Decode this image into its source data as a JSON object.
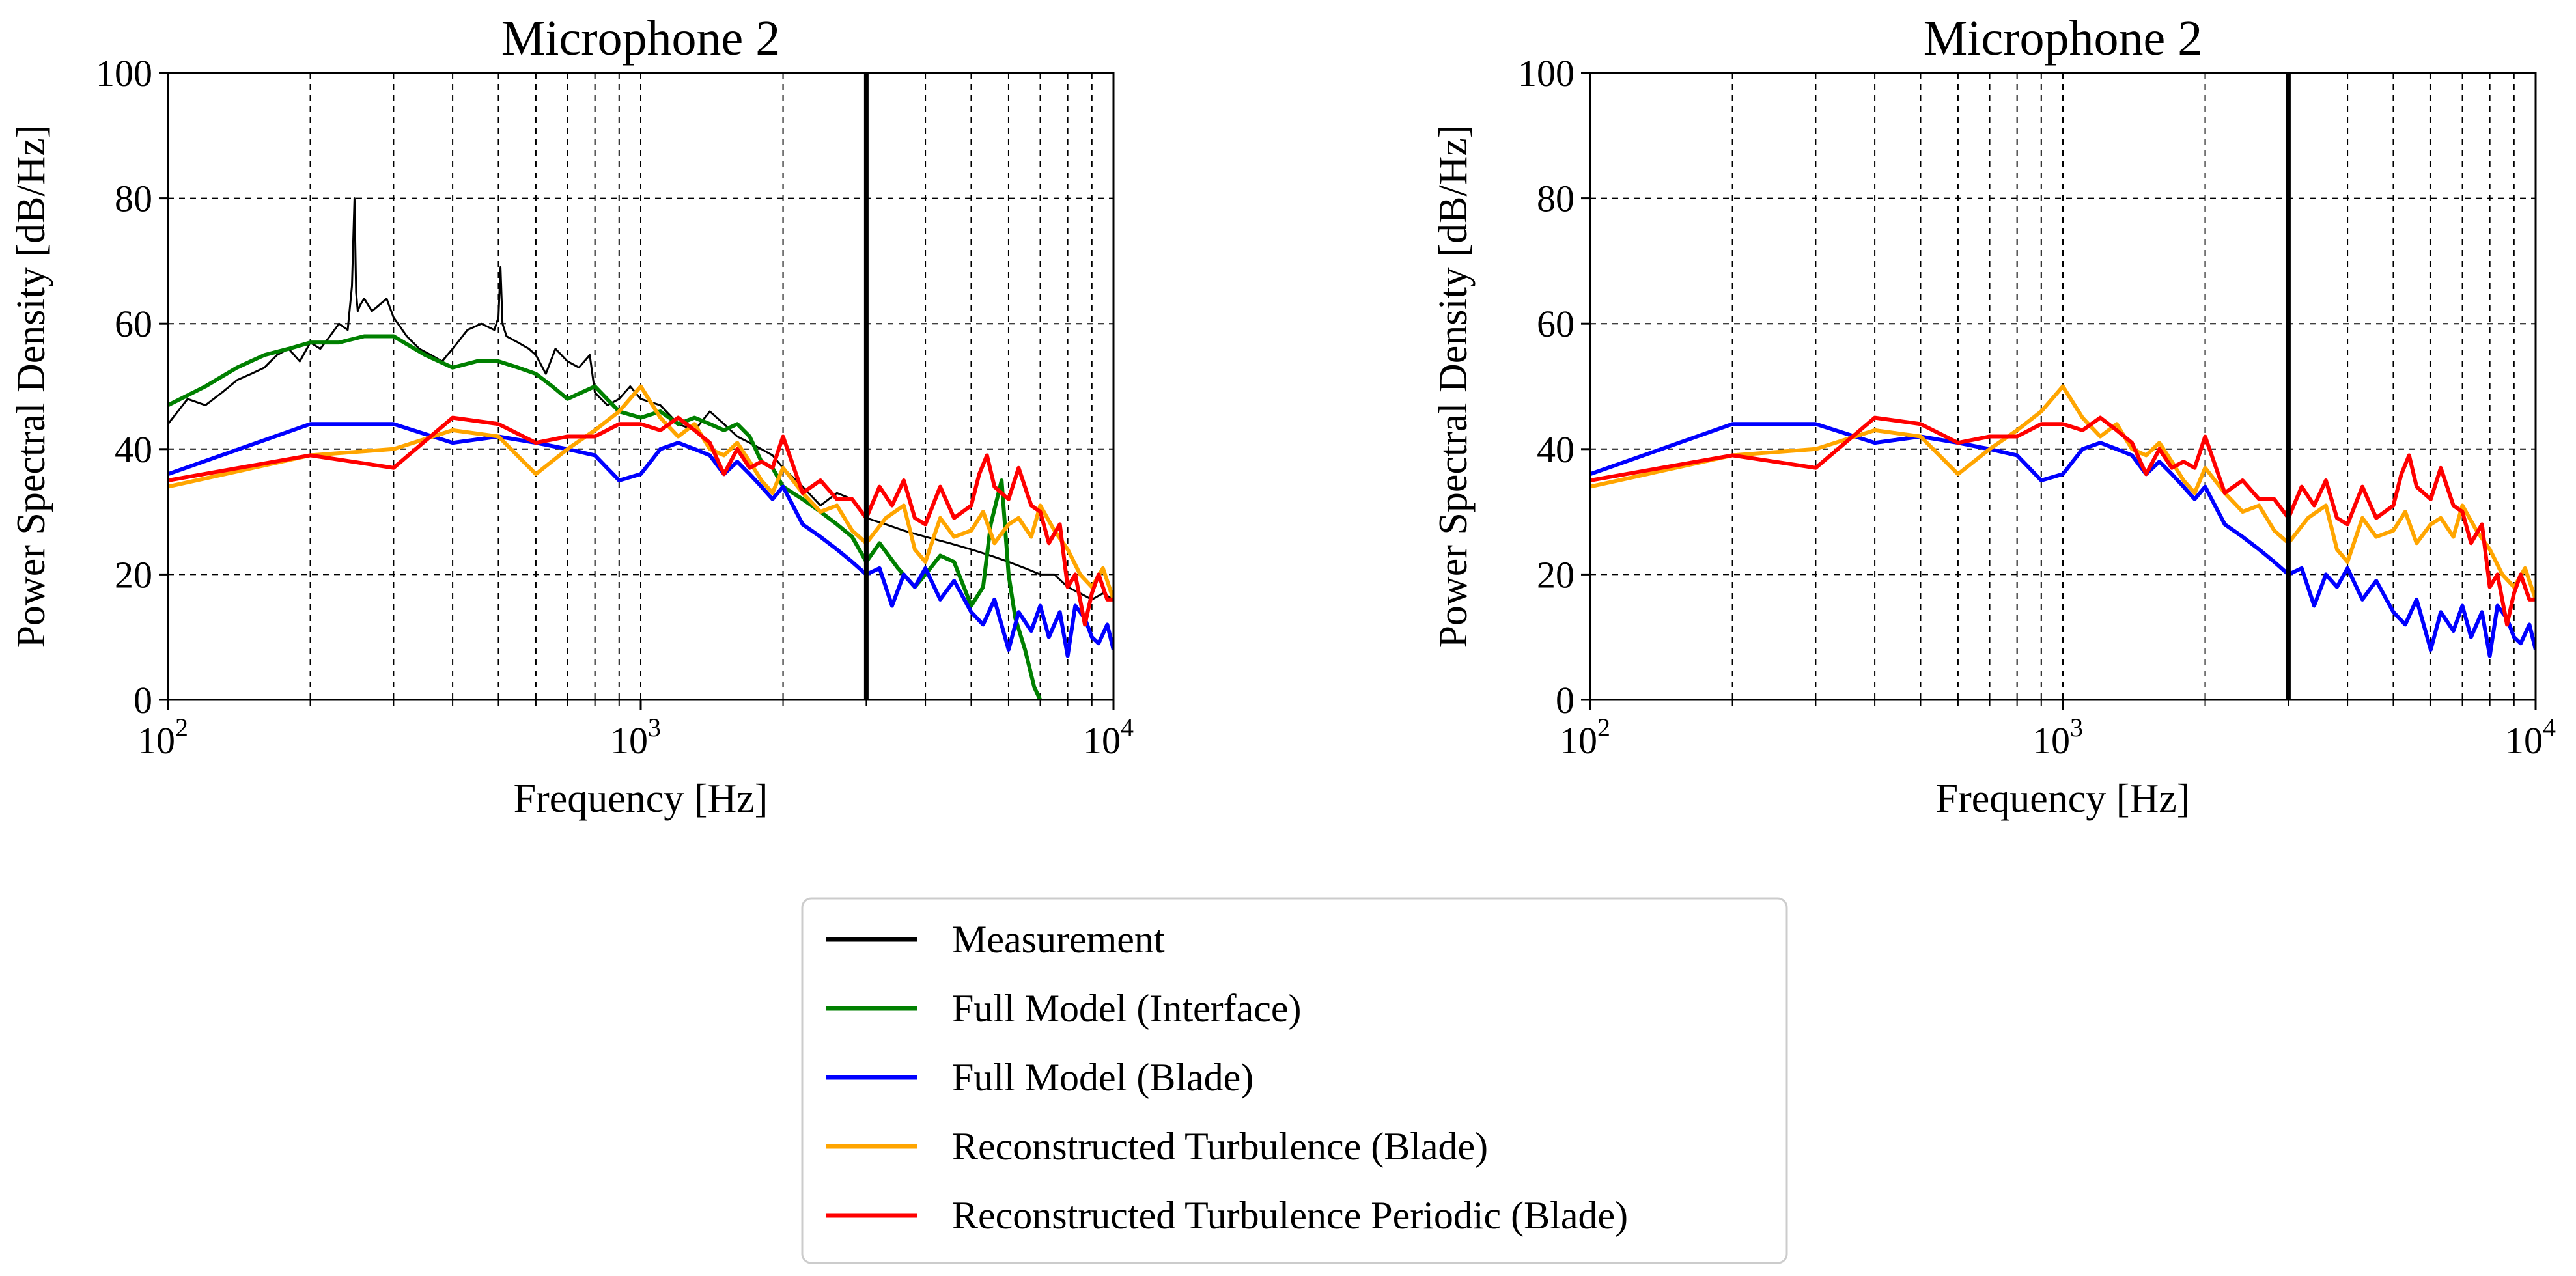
{
  "colors": {
    "Measurement": "#000000",
    "Full Model (Interface)": "#008000",
    "Full Model (Blade)": "#0000ff",
    "Reconstructed Turbulence (Blade)": "#ffa500",
    "Reconstructed Turbulence Periodic (Blade)": "#ff0000"
  },
  "legend": {
    "entries": [
      "Measurement",
      "Full Model (Interface)",
      "Full Model (Blade)",
      "Reconstructed Turbulence (Blade)",
      "Reconstructed Turbulence Periodic (Blade)"
    ]
  },
  "chart_data": [
    {
      "type": "line",
      "title": "Microphone 2",
      "xlabel": "Frequency [Hz]",
      "ylabel": "Power Spectral Density [dB/Hz]",
      "xscale": "log",
      "xlim": [
        100,
        10000
      ],
      "ylim": [
        0,
        100
      ],
      "yticks": [
        0,
        20,
        40,
        60,
        80,
        100
      ],
      "xticks": [
        {
          "base": "10",
          "exp": "2",
          "value": 100
        },
        {
          "base": "10",
          "exp": "3",
          "value": 1000
        },
        {
          "base": "10",
          "exp": "4",
          "value": 10000
        }
      ],
      "grid": true,
      "vertical_line_x": 3000,
      "series": [
        {
          "name": "Measurement",
          "x": [
            100,
            110,
            120,
            130,
            140,
            150,
            160,
            170,
            180,
            190,
            200,
            210,
            220,
            230,
            240,
            245,
            248,
            250,
            252,
            255,
            260,
            270,
            280,
            290,
            300,
            320,
            340,
            360,
            380,
            400,
            430,
            460,
            490,
            500,
            505,
            510,
            520,
            550,
            580,
            600,
            630,
            660,
            700,
            740,
            780,
            800,
            850,
            900,
            950,
            1000,
            1100,
            1200,
            1300,
            1400,
            1500,
            1600,
            1700,
            1800,
            1900,
            2000,
            2200,
            2400,
            2600,
            2800,
            3000,
            3300,
            3600,
            4000,
            4500,
            5000,
            5500,
            6000,
            6500,
            7000,
            7500,
            8000,
            8500,
            9000,
            9500,
            10000
          ],
          "y": [
            44,
            48,
            47,
            49,
            51,
            52,
            53,
            55,
            56,
            54,
            57,
            56,
            58,
            60,
            59,
            66,
            80,
            65,
            62,
            63,
            64,
            62,
            63,
            64,
            61,
            58,
            56,
            55,
            54,
            56,
            59,
            60,
            59,
            61,
            69,
            60,
            58,
            57,
            56,
            55,
            52,
            56,
            54,
            53,
            55,
            49,
            47,
            48,
            50,
            48,
            47,
            44,
            43,
            46,
            44,
            42,
            41,
            40,
            39,
            37,
            34,
            31,
            33,
            32,
            29,
            28,
            27,
            26,
            25,
            24,
            23,
            22,
            21,
            20,
            20,
            18,
            17,
            16,
            17,
            16
          ]
        },
        {
          "name": "Full Model (Interface)",
          "x": [
            100,
            120,
            140,
            160,
            180,
            200,
            230,
            260,
            300,
            350,
            400,
            450,
            500,
            550,
            600,
            650,
            700,
            800,
            900,
            1000,
            1100,
            1200,
            1300,
            1400,
            1500,
            1600,
            1700,
            1800,
            1900,
            2000,
            2200,
            2400,
            2600,
            2800,
            3000,
            3200,
            3500,
            3800,
            4000,
            4300,
            4600,
            5000,
            5300,
            5500,
            5800,
            6000,
            6200,
            6500,
            6800,
            7000
          ],
          "y": [
            47,
            50,
            53,
            55,
            56,
            57,
            57,
            58,
            58,
            55,
            53,
            54,
            54,
            53,
            52,
            50,
            48,
            50,
            46,
            45,
            46,
            44,
            45,
            44,
            43,
            44,
            42,
            38,
            37,
            34,
            32,
            30,
            28,
            26,
            22,
            25,
            21,
            18,
            20,
            23,
            22,
            15,
            18,
            28,
            35,
            20,
            13,
            8,
            2,
            0
          ]
        },
        {
          "name": "Full Model (Blade)",
          "x": [
            100,
            200,
            300,
            400,
            500,
            600,
            700,
            800,
            900,
            1000,
            1100,
            1200,
            1300,
            1400,
            1500,
            1600,
            1700,
            1800,
            1900,
            2000,
            2200,
            2400,
            2600,
            2800,
            3000,
            3200,
            3400,
            3600,
            3800,
            4000,
            4300,
            4600,
            5000,
            5300,
            5600,
            6000,
            6300,
            6700,
            7000,
            7300,
            7700,
            8000,
            8300,
            8700,
            9000,
            9300,
            9700,
            10000
          ],
          "y": [
            36,
            44,
            44,
            41,
            42,
            41,
            40,
            39,
            35,
            36,
            40,
            41,
            40,
            39,
            36,
            38,
            36,
            34,
            32,
            34,
            28,
            26,
            24,
            22,
            20,
            21,
            15,
            20,
            18,
            21,
            16,
            19,
            14,
            12,
            16,
            8,
            14,
            11,
            15,
            10,
            14,
            7,
            15,
            13,
            10,
            9,
            12,
            8
          ]
        },
        {
          "name": "Reconstructed Turbulence (Blade)",
          "x": [
            100,
            200,
            300,
            400,
            500,
            600,
            700,
            800,
            900,
            1000,
            1100,
            1200,
            1300,
            1400,
            1500,
            1600,
            1700,
            1800,
            1900,
            2000,
            2200,
            2400,
            2600,
            2800,
            3000,
            3300,
            3600,
            3800,
            4000,
            4300,
            4600,
            5000,
            5300,
            5600,
            6000,
            6300,
            6700,
            7000,
            7500,
            8000,
            8500,
            9000,
            9500,
            10000
          ],
          "y": [
            34,
            39,
            40,
            43,
            42,
            36,
            40,
            43,
            46,
            50,
            45,
            42,
            44,
            40,
            39,
            41,
            38,
            35,
            33,
            37,
            33,
            30,
            31,
            27,
            25,
            29,
            31,
            24,
            22,
            29,
            26,
            27,
            30,
            25,
            28,
            29,
            26,
            31,
            27,
            24,
            20,
            18,
            21,
            16
          ]
        },
        {
          "name": "Reconstructed Turbulence Periodic (Blade)",
          "x": [
            100,
            200,
            300,
            400,
            500,
            600,
            700,
            800,
            900,
            1000,
            1100,
            1200,
            1300,
            1400,
            1500,
            1600,
            1700,
            1800,
            1900,
            2000,
            2200,
            2400,
            2600,
            2800,
            3000,
            3200,
            3400,
            3600,
            3800,
            4000,
            4300,
            4600,
            5000,
            5200,
            5400,
            5600,
            6000,
            6300,
            6700,
            7000,
            7300,
            7700,
            8000,
            8300,
            8700,
            9000,
            9300,
            9700,
            10000
          ],
          "y": [
            35,
            39,
            37,
            45,
            44,
            41,
            42,
            42,
            44,
            44,
            43,
            45,
            43,
            41,
            36,
            40,
            37,
            38,
            37,
            42,
            33,
            35,
            32,
            32,
            29,
            34,
            31,
            35,
            29,
            28,
            34,
            29,
            31,
            36,
            39,
            34,
            32,
            37,
            31,
            30,
            25,
            28,
            18,
            20,
            12,
            17,
            20,
            16,
            16
          ]
        }
      ]
    },
    {
      "type": "line",
      "title": "Microphone 2",
      "xlabel": "Frequency [Hz]",
      "ylabel": "Power Spectral Density [dB/Hz]",
      "xscale": "log",
      "xlim": [
        100,
        10000
      ],
      "ylim": [
        0,
        100
      ],
      "yticks": [
        0,
        20,
        40,
        60,
        80,
        100
      ],
      "xticks": [
        {
          "base": "10",
          "exp": "2",
          "value": 100
        },
        {
          "base": "10",
          "exp": "3",
          "value": 1000
        },
        {
          "base": "10",
          "exp": "4",
          "value": 10000
        }
      ],
      "grid": true,
      "vertical_line_x": 3000,
      "series": [
        {
          "name": "Full Model (Blade)",
          "x": [
            100,
            200,
            300,
            400,
            500,
            600,
            700,
            800,
            900,
            1000,
            1100,
            1200,
            1300,
            1400,
            1500,
            1600,
            1700,
            1800,
            1900,
            2000,
            2200,
            2400,
            2600,
            2800,
            3000,
            3200,
            3400,
            3600,
            3800,
            4000,
            4300,
            4600,
            5000,
            5300,
            5600,
            6000,
            6300,
            6700,
            7000,
            7300,
            7700,
            8000,
            8300,
            8700,
            9000,
            9300,
            9700,
            10000
          ],
          "y": [
            36,
            44,
            44,
            41,
            42,
            41,
            40,
            39,
            35,
            36,
            40,
            41,
            40,
            39,
            36,
            38,
            36,
            34,
            32,
            34,
            28,
            26,
            24,
            22,
            20,
            21,
            15,
            20,
            18,
            21,
            16,
            19,
            14,
            12,
            16,
            8,
            14,
            11,
            15,
            10,
            14,
            7,
            15,
            13,
            10,
            9,
            12,
            8
          ]
        },
        {
          "name": "Reconstructed Turbulence (Blade)",
          "x": [
            100,
            200,
            300,
            400,
            500,
            600,
            700,
            800,
            900,
            1000,
            1100,
            1200,
            1300,
            1400,
            1500,
            1600,
            1700,
            1800,
            1900,
            2000,
            2200,
            2400,
            2600,
            2800,
            3000,
            3300,
            3600,
            3800,
            4000,
            4300,
            4600,
            5000,
            5300,
            5600,
            6000,
            6300,
            6700,
            7000,
            7500,
            8000,
            8500,
            9000,
            9500,
            10000
          ],
          "y": [
            34,
            39,
            40,
            43,
            42,
            36,
            40,
            43,
            46,
            50,
            45,
            42,
            44,
            40,
            39,
            41,
            38,
            35,
            33,
            37,
            33,
            30,
            31,
            27,
            25,
            29,
            31,
            24,
            22,
            29,
            26,
            27,
            30,
            25,
            28,
            29,
            26,
            31,
            27,
            24,
            20,
            18,
            21,
            16
          ]
        },
        {
          "name": "Reconstructed Turbulence Periodic (Blade)",
          "x": [
            100,
            200,
            300,
            400,
            500,
            600,
            700,
            800,
            900,
            1000,
            1100,
            1200,
            1300,
            1400,
            1500,
            1600,
            1700,
            1800,
            1900,
            2000,
            2200,
            2400,
            2600,
            2800,
            3000,
            3200,
            3400,
            3600,
            3800,
            4000,
            4300,
            4600,
            5000,
            5200,
            5400,
            5600,
            6000,
            6300,
            6700,
            7000,
            7300,
            7700,
            8000,
            8300,
            8700,
            9000,
            9300,
            9700,
            10000
          ],
          "y": [
            35,
            39,
            37,
            45,
            44,
            41,
            42,
            42,
            44,
            44,
            43,
            45,
            43,
            41,
            36,
            40,
            37,
            38,
            37,
            42,
            33,
            35,
            32,
            32,
            29,
            34,
            31,
            35,
            29,
            28,
            34,
            29,
            31,
            36,
            39,
            34,
            32,
            37,
            31,
            30,
            25,
            28,
            18,
            20,
            12,
            17,
            20,
            16,
            16
          ]
        }
      ]
    }
  ]
}
